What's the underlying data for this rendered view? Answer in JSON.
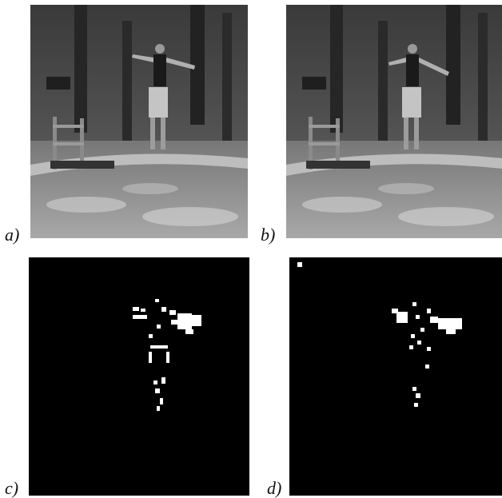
{
  "figure": {
    "panels": [
      {
        "id": "a",
        "label": "a)",
        "kind": "photo",
        "description_kind": "grayscale video frame"
      },
      {
        "id": "b",
        "label": "b)",
        "kind": "photo",
        "description_kind": "grayscale video frame"
      },
      {
        "id": "c",
        "label": "c)",
        "kind": "mask",
        "description_kind": "binary motion mask"
      },
      {
        "id": "d",
        "label": "d)",
        "kind": "mask",
        "description_kind": "binary motion mask"
      }
    ]
  }
}
